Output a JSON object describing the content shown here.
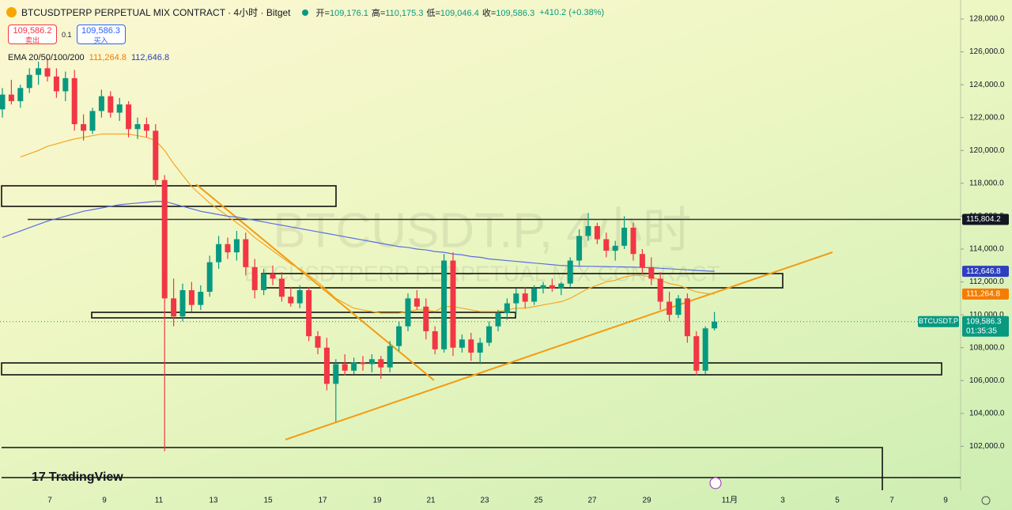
{
  "chart_data": {
    "type": "candlestick",
    "title": "BTCUSDTPERP PERPETUAL MIX CONTRACT · 4小时 · Bitget",
    "ohlc": [
      {
        "label": "开=",
        "value": "109,176.1"
      },
      {
        "label": "高=",
        "value": "110,175.3"
      },
      {
        "label": "低=",
        "value": "109,046.4"
      },
      {
        "label": "收=",
        "value": "109,586.3"
      }
    ],
    "change": "+410.2 (+0.38%)",
    "sell": {
      "price": "109,586.2",
      "label": "卖出"
    },
    "spread": "0.1",
    "buy": {
      "price": "109,586.3",
      "label": "买入"
    },
    "ema_legend": {
      "label": "EMA 20/50/100/200",
      "values": [
        "111,264.8",
        "112,646.8"
      ]
    },
    "watermark": {
      "title": "BTCUSDT.P, 4小时",
      "subtitle": "BTCUSDTPERP PERPETUAL MIX CONTRACT"
    },
    "brand": "TradingView",
    "x_labels": [
      "7",
      "9",
      "11",
      "13",
      "15",
      "17",
      "19",
      "21",
      "23",
      "25",
      "27",
      "29",
      "11月",
      "3",
      "5",
      "7",
      "9"
    ],
    "ylim": [
      100000,
      128000
    ],
    "yticks": [
      {
        "value": 102000,
        "label": "102,000.0"
      },
      {
        "value": 104000,
        "label": "104,000.0"
      },
      {
        "value": 106000,
        "label": "106,000.0"
      },
      {
        "value": 108000,
        "label": "108,000.0"
      },
      {
        "value": 110000,
        "label": "110,000.0"
      },
      {
        "value": 112000,
        "label": "112,000.0"
      },
      {
        "value": 114000,
        "label": "114,000.0"
      },
      {
        "value": 116000,
        "label": "116,000.0"
      },
      {
        "value": 118000,
        "label": "118,000.0"
      },
      {
        "value": 120000,
        "label": "120,000.0"
      },
      {
        "value": 122000,
        "label": "122,000.0"
      },
      {
        "value": 124000,
        "label": "124,000.0"
      },
      {
        "value": 126000,
        "label": "126,000.0"
      },
      {
        "value": 128000,
        "label": "128,000.0"
      }
    ],
    "up_color": "#089981",
    "down_color": "#f23645",
    "price_tags": [
      {
        "value": 115804.2,
        "label": "115,804.2",
        "color": "#131722"
      },
      {
        "value": 112646.8,
        "label": "112,646.8",
        "color": "#2e3fbf"
      },
      {
        "value": 111264.8,
        "label": "111,264.8",
        "color": "#f57c00"
      }
    ],
    "last_price": {
      "value": 109586.3,
      "label": "109,586.3",
      "countdown": "01:35:35",
      "symbol": "BTCUSDT.P",
      "color": "#089981"
    },
    "series": [
      {
        "type": "candlestick",
        "values": [
          [
            122500,
            123800,
            122000,
            123400
          ],
          [
            123400,
            124300,
            122800,
            123000
          ],
          [
            123000,
            124000,
            122600,
            123800
          ],
          [
            123800,
            125000,
            123500,
            124600
          ],
          [
            124600,
            125400,
            124000,
            125000
          ],
          [
            125000,
            125600,
            124200,
            124500
          ],
          [
            124500,
            125000,
            123200,
            123600
          ],
          [
            123600,
            124800,
            123000,
            124400
          ],
          [
            124400,
            124900,
            121200,
            121600
          ],
          [
            121600,
            122200,
            120600,
            121200
          ],
          [
            121200,
            122600,
            121000,
            122400
          ],
          [
            122400,
            123700,
            122000,
            123300
          ],
          [
            123300,
            123600,
            122000,
            122300
          ],
          [
            122300,
            123200,
            121800,
            122800
          ],
          [
            122800,
            123000,
            120800,
            121300
          ],
          [
            121300,
            122000,
            120700,
            121600
          ],
          [
            121600,
            122000,
            120800,
            121200
          ],
          [
            121200,
            121600,
            117800,
            118200
          ],
          [
            118200,
            118500,
            101700,
            111000
          ],
          [
            111000,
            112200,
            109300,
            109900
          ],
          [
            109900,
            111900,
            109600,
            111500
          ],
          [
            111500,
            112000,
            110200,
            110600
          ],
          [
            110600,
            111800,
            110300,
            111400
          ],
          [
            111400,
            113600,
            111100,
            113200
          ],
          [
            113200,
            114800,
            112800,
            114300
          ],
          [
            114300,
            114700,
            113400,
            113800
          ],
          [
            113800,
            115100,
            113300,
            114600
          ],
          [
            114600,
            115000,
            112400,
            112900
          ],
          [
            112900,
            113400,
            111000,
            111500
          ],
          [
            111500,
            112800,
            111200,
            112500
          ],
          [
            112500,
            113000,
            111800,
            112200
          ],
          [
            112200,
            112600,
            110800,
            111100
          ],
          [
            111100,
            111700,
            110500,
            110700
          ],
          [
            110700,
            111800,
            110400,
            111500
          ],
          [
            111500,
            111700,
            108400,
            108700
          ],
          [
            108700,
            109000,
            107600,
            108000
          ],
          [
            108000,
            108600,
            105400,
            105800
          ],
          [
            105800,
            107300,
            103500,
            107000
          ],
          [
            107000,
            107600,
            106300,
            106600
          ],
          [
            106600,
            107400,
            106400,
            107100
          ],
          [
            107100,
            107500,
            106600,
            107000
          ],
          [
            107000,
            107600,
            106500,
            107300
          ],
          [
            107300,
            107500,
            106100,
            106800
          ],
          [
            106800,
            108400,
            106500,
            108100
          ],
          [
            108100,
            109600,
            107800,
            109300
          ],
          [
            109300,
            111300,
            109000,
            111000
          ],
          [
            111000,
            111500,
            110300,
            110500
          ],
          [
            110500,
            111000,
            108500,
            109000
          ],
          [
            109000,
            109300,
            107600,
            107900
          ],
          [
            107900,
            113700,
            107700,
            113300
          ],
          [
            113300,
            113800,
            107500,
            108000
          ],
          [
            108000,
            108800,
            107700,
            108500
          ],
          [
            108500,
            108900,
            107200,
            107700
          ],
          [
            107700,
            108600,
            107000,
            108300
          ],
          [
            108300,
            109600,
            108100,
            109300
          ],
          [
            109300,
            110300,
            109000,
            110100
          ],
          [
            110100,
            111000,
            109700,
            110700
          ],
          [
            110700,
            111600,
            110000,
            111300
          ],
          [
            111300,
            111700,
            110400,
            110800
          ],
          [
            110800,
            111800,
            110600,
            111600
          ],
          [
            111600,
            112000,
            111300,
            111800
          ],
          [
            111800,
            112200,
            111400,
            111600
          ],
          [
            111600,
            112000,
            111200,
            111900
          ],
          [
            111900,
            113500,
            111700,
            113300
          ],
          [
            113300,
            115200,
            113000,
            114800
          ],
          [
            114800,
            116200,
            114500,
            115400
          ],
          [
            115400,
            115600,
            114300,
            114600
          ],
          [
            114600,
            115000,
            113500,
            113900
          ],
          [
            113900,
            114500,
            113300,
            114200
          ],
          [
            114200,
            116000,
            114000,
            115300
          ],
          [
            115300,
            115600,
            113300,
            113700
          ],
          [
            113700,
            114000,
            112500,
            112900
          ],
          [
            112900,
            113500,
            111800,
            112200
          ],
          [
            112200,
            112600,
            110300,
            110800
          ],
          [
            110800,
            111400,
            109600,
            110000
          ],
          [
            110000,
            111200,
            109800,
            111000
          ],
          [
            111000,
            111300,
            108300,
            108700
          ],
          [
            108700,
            109000,
            106300,
            106600
          ],
          [
            106600,
            109300,
            106400,
            109176.1
          ],
          [
            109176.1,
            110175.3,
            109046.4,
            109586.3
          ]
        ]
      },
      {
        "type": "line",
        "color": "#f5a623",
        "values": [
          null,
          null,
          119600,
          119800,
          120000,
          120250,
          120400,
          120550,
          120700,
          120800,
          120900,
          121000,
          121000,
          121000,
          121000,
          120900,
          120800,
          120600,
          120000,
          119200,
          118500,
          117800,
          117300,
          116800,
          116400,
          116000,
          115600,
          115200,
          114700,
          114300,
          113900,
          113500,
          113100,
          112800,
          112400,
          112000,
          111500,
          111000,
          110700,
          110400,
          110300,
          110200,
          110100,
          110100,
          110100,
          110200,
          110300,
          110300,
          110200,
          110500,
          110500,
          110400,
          110300,
          110200,
          110200,
          110200,
          110300,
          110400,
          110400,
          110500,
          110600,
          110700,
          110800,
          111000,
          111300,
          111600,
          111800,
          112000,
          112100,
          112300,
          112400,
          112400,
          112300,
          112100,
          111900,
          111800,
          111600,
          111400,
          111300,
          111264.8
        ]
      },
      {
        "type": "line",
        "color": "#5b6ee1",
        "values": [
          114700,
          114900,
          115100,
          115300,
          115500,
          115700,
          115850,
          116000,
          116150,
          116300,
          116400,
          116500,
          116600,
          116700,
          116750,
          116800,
          116850,
          116900,
          116900,
          116750,
          116600,
          116450,
          116300,
          116200,
          116100,
          116000,
          115950,
          115850,
          115750,
          115650,
          115550,
          115450,
          115350,
          115250,
          115150,
          115050,
          114950,
          114850,
          114750,
          114650,
          114550,
          114450,
          114350,
          114250,
          114150,
          114100,
          114000,
          113950,
          113850,
          113800,
          113700,
          113650,
          113550,
          113500,
          113400,
          113350,
          113300,
          113250,
          113200,
          113150,
          113100,
          113050,
          113000,
          112980,
          112960,
          112950,
          112940,
          112930,
          112920,
          112910,
          112900,
          112880,
          112860,
          112830,
          112800,
          112770,
          112740,
          112700,
          112670,
          112646.8
        ]
      }
    ]
  }
}
